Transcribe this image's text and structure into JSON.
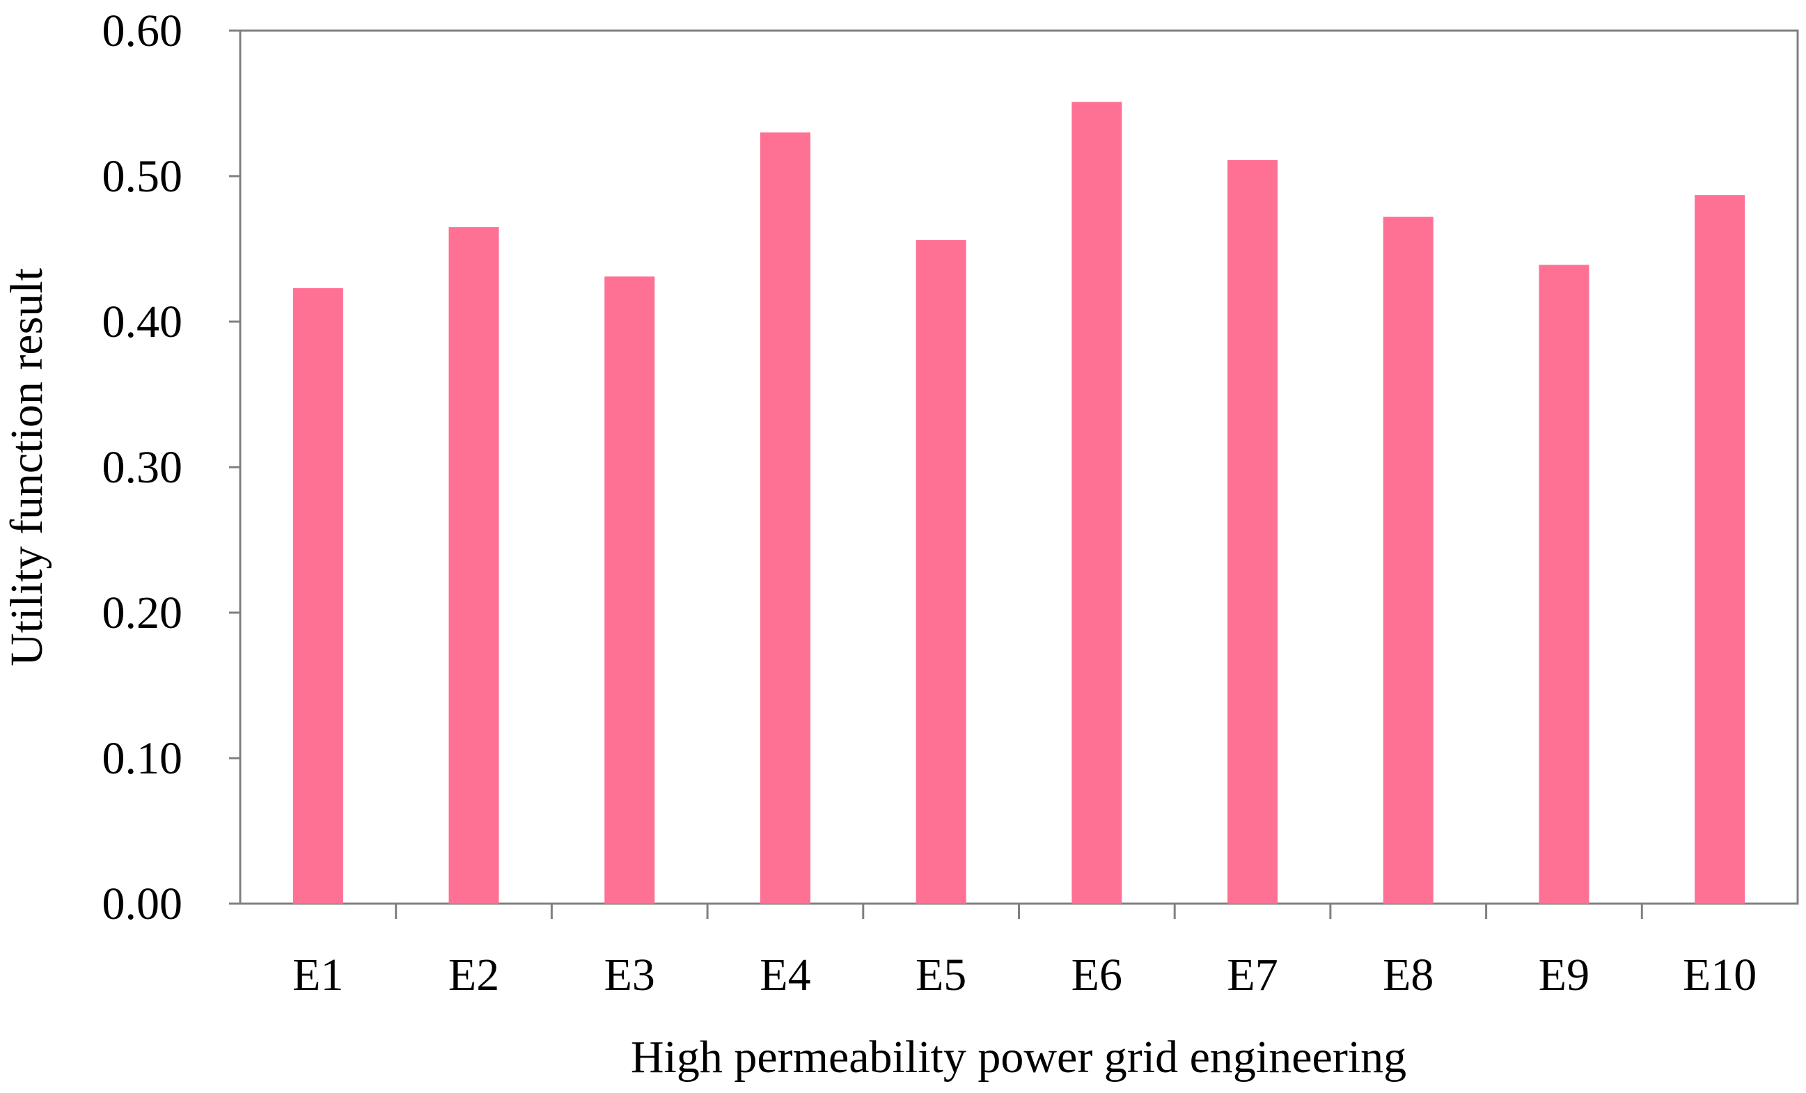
{
  "chart_data": {
    "type": "bar",
    "title": "",
    "xlabel": "High permeability power grid engineering",
    "ylabel": "Utility function result",
    "categories": [
      "E1",
      "E2",
      "E3",
      "E4",
      "E5",
      "E6",
      "E7",
      "E8",
      "E9",
      "E10"
    ],
    "values": [
      0.423,
      0.465,
      0.431,
      0.53,
      0.456,
      0.551,
      0.511,
      0.472,
      0.439,
      0.487
    ],
    "ylim": [
      0,
      0.6
    ],
    "yticks": [
      "0.00",
      "0.10",
      "0.20",
      "0.30",
      "0.40",
      "0.50",
      "0.60"
    ],
    "grid": false,
    "bar_color": "#FF7095"
  }
}
